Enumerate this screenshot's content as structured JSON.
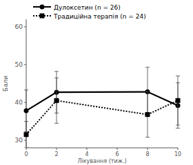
{
  "chart_data": {
    "type": "line",
    "x_label": "Лікування (тиж.)",
    "y_label": "Бали",
    "x": [
      0,
      2,
      8,
      10
    ],
    "xlim": [
      0,
      10
    ],
    "xticks": [
      0,
      2,
      4,
      6,
      8,
      10
    ],
    "ylim": [
      28,
      62
    ],
    "yticks": [
      30,
      40,
      50,
      60
    ],
    "grid": false,
    "legend": "upper left",
    "series": [
      {
        "name": "Дулоксетин (n = 26)",
        "color": "#000000",
        "marker": "circle",
        "line_style": "solid",
        "values": [
          37.8,
          42.7,
          42.8,
          39.2
        ],
        "errors": [
          5.5,
          5.5,
          6.5,
          6
        ]
      },
      {
        "name": "Традиційна терапія (n = 24)",
        "color": "#000000",
        "marker": "square",
        "line_style": "dotted",
        "values": [
          31.5,
          40.5,
          36.8,
          40.5
        ],
        "errors": [
          3.5,
          6,
          6,
          6.5
        ]
      }
    ]
  }
}
